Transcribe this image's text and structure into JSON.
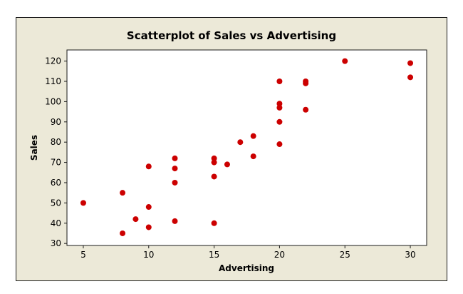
{
  "chart_data": {
    "type": "scatter",
    "title": "Scatterplot of Sales vs Advertising",
    "xlabel": "Advertising",
    "ylabel": "Sales",
    "xlim": [
      3.75,
      31.25
    ],
    "ylim": [
      29,
      125.5
    ],
    "xticks": [
      5,
      10,
      15,
      20,
      25,
      30
    ],
    "yticks": [
      30,
      40,
      50,
      60,
      70,
      80,
      90,
      100,
      110,
      120
    ],
    "grid": false,
    "marker_color": "#cc0000",
    "frame_background": "#ece9d8",
    "plot_background": "#ffffff",
    "series": [
      {
        "name": "Sales vs Advertising",
        "points": [
          {
            "x": 5,
            "y": 50
          },
          {
            "x": 8,
            "y": 55
          },
          {
            "x": 8,
            "y": 35
          },
          {
            "x": 9,
            "y": 42
          },
          {
            "x": 10,
            "y": 68
          },
          {
            "x": 10,
            "y": 48
          },
          {
            "x": 10,
            "y": 38
          },
          {
            "x": 12,
            "y": 72
          },
          {
            "x": 12,
            "y": 67
          },
          {
            "x": 12,
            "y": 60
          },
          {
            "x": 12,
            "y": 41
          },
          {
            "x": 15,
            "y": 72
          },
          {
            "x": 15,
            "y": 70
          },
          {
            "x": 15,
            "y": 63
          },
          {
            "x": 15,
            "y": 40
          },
          {
            "x": 16,
            "y": 69
          },
          {
            "x": 17,
            "y": 80
          },
          {
            "x": 18,
            "y": 83
          },
          {
            "x": 18,
            "y": 73
          },
          {
            "x": 20,
            "y": 110
          },
          {
            "x": 20,
            "y": 99
          },
          {
            "x": 20,
            "y": 97
          },
          {
            "x": 20,
            "y": 90
          },
          {
            "x": 20,
            "y": 79
          },
          {
            "x": 22,
            "y": 110
          },
          {
            "x": 22,
            "y": 109
          },
          {
            "x": 22,
            "y": 96
          },
          {
            "x": 25,
            "y": 120
          },
          {
            "x": 30,
            "y": 119
          },
          {
            "x": 30,
            "y": 112
          }
        ]
      }
    ]
  }
}
